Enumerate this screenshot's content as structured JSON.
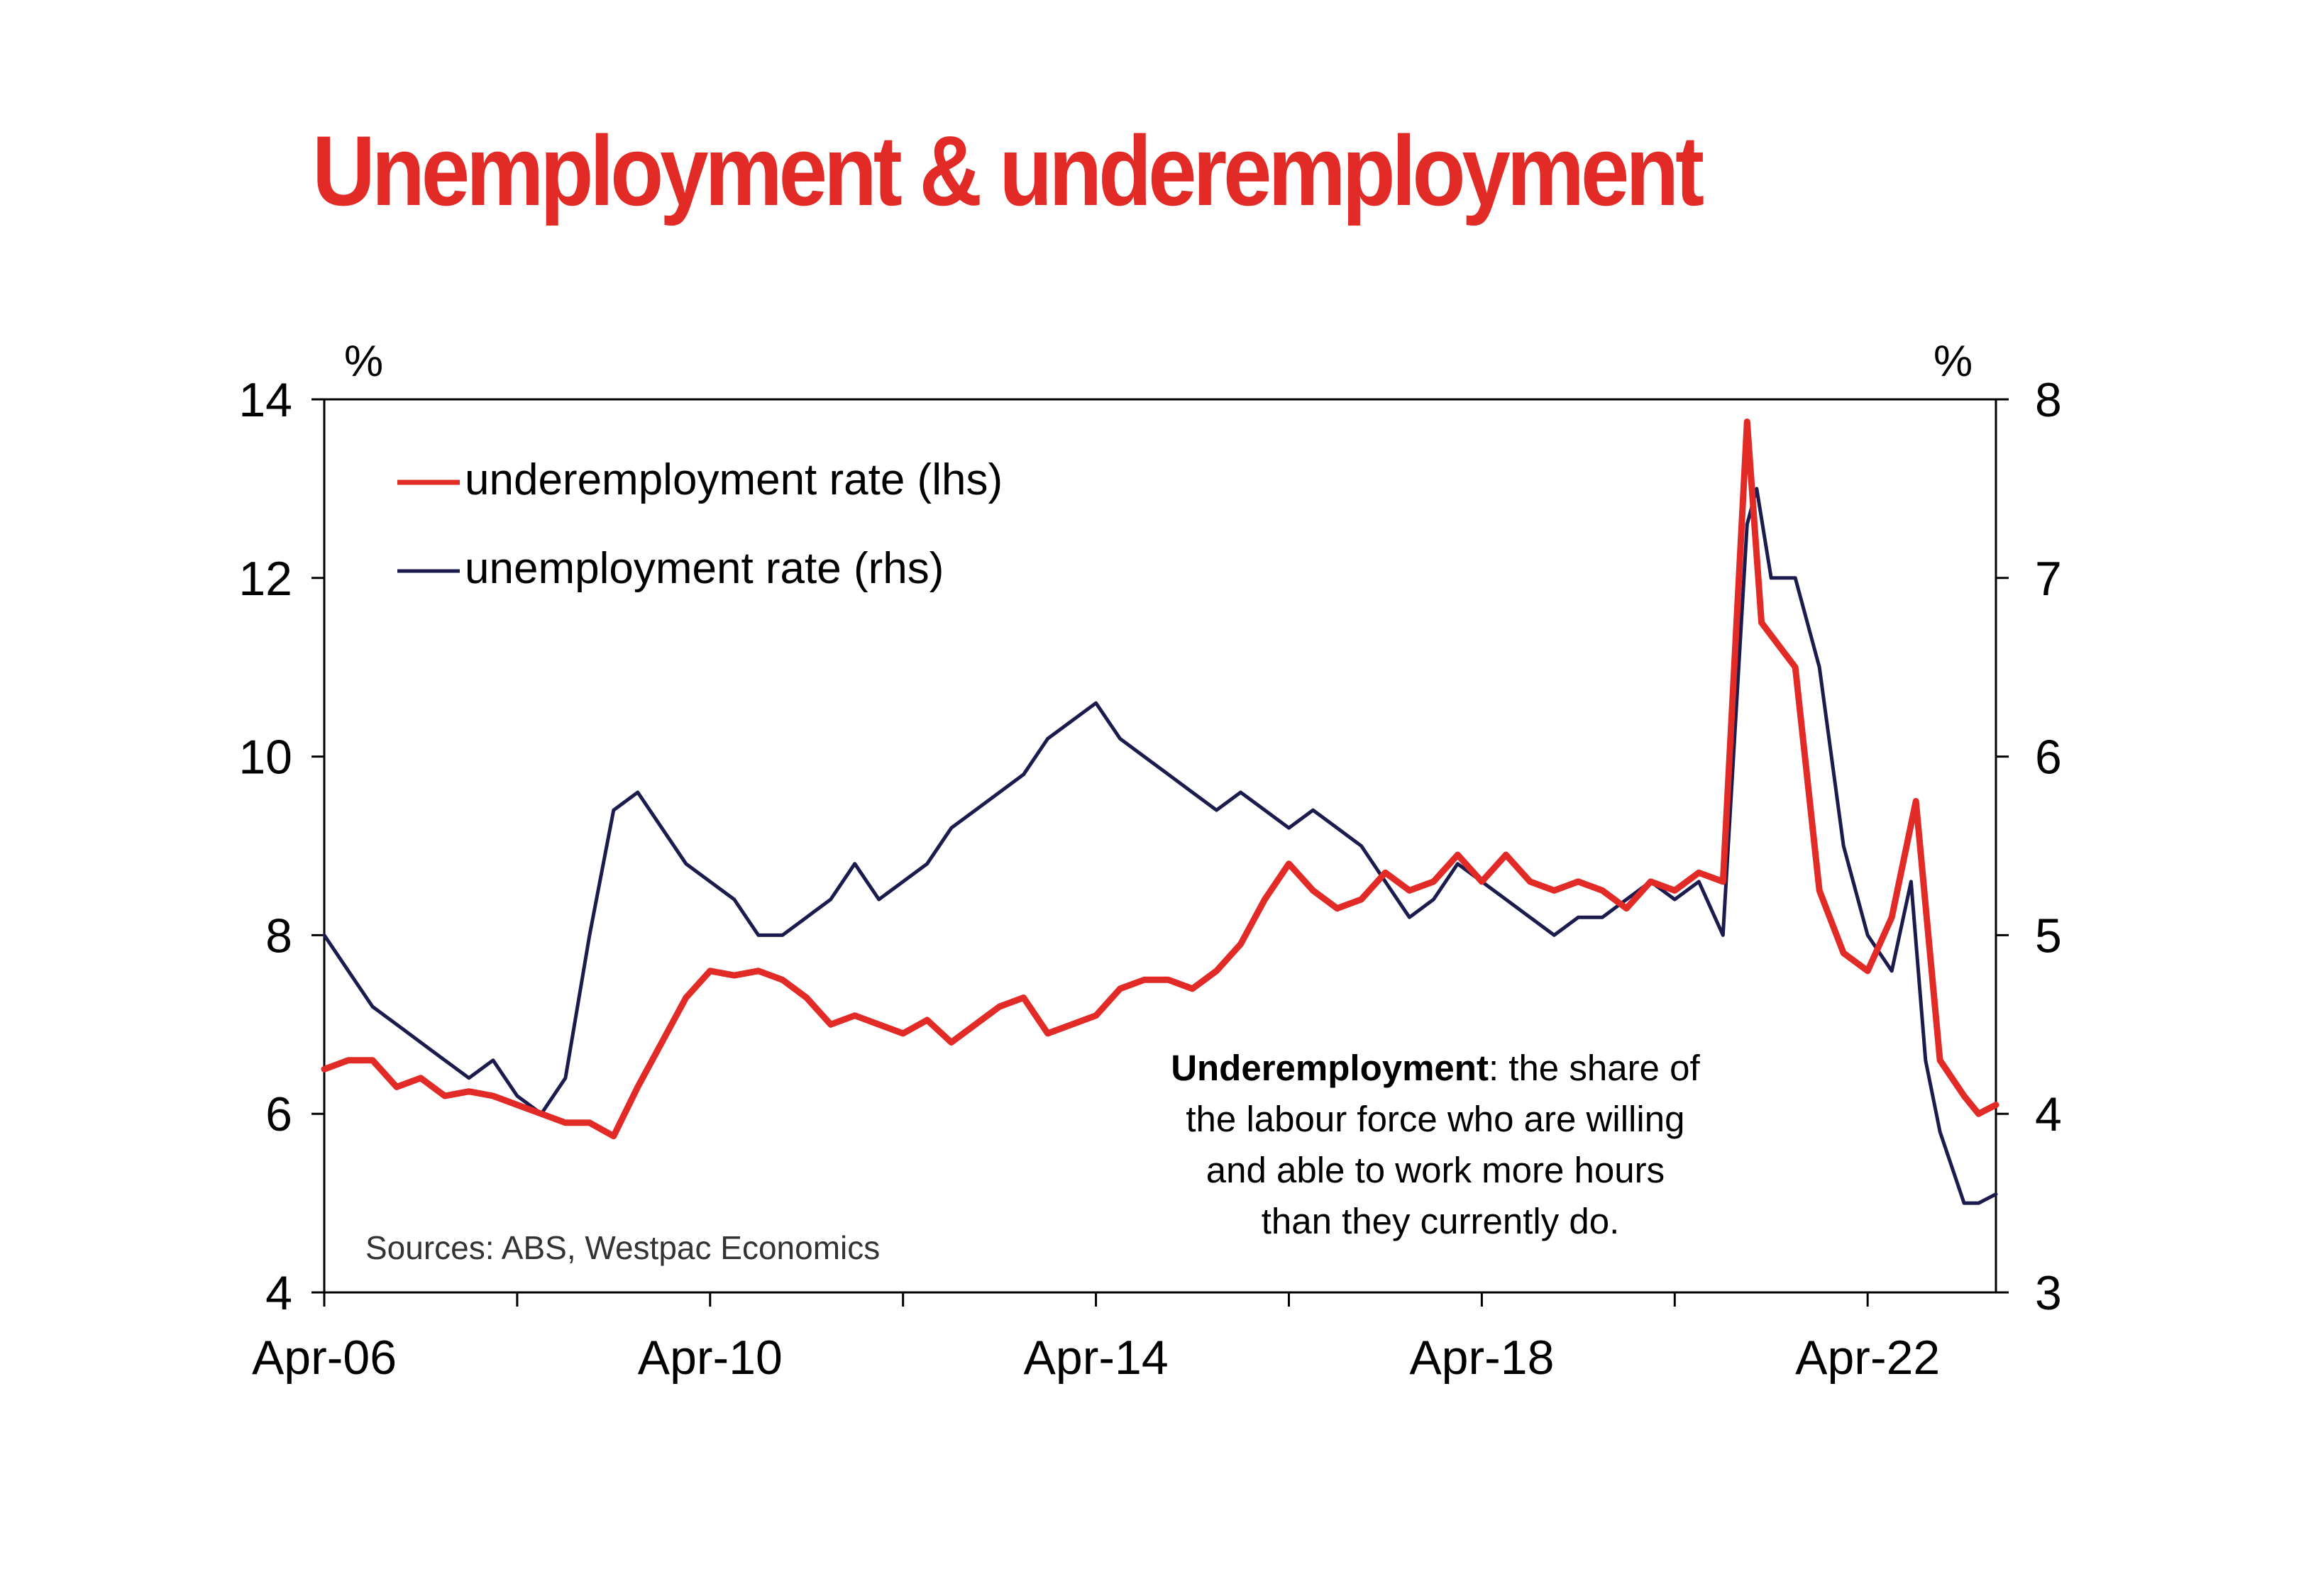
{
  "title": "Unemployment & underemployment",
  "colors": {
    "title": "#e22a26",
    "underemployment": "#e22a26",
    "unemployment": "#1b1b4d"
  },
  "chart_data": {
    "type": "line",
    "title": "Unemployment & underemployment",
    "x_tick_labels": [
      "Apr-06",
      "Apr-10",
      "Apr-14",
      "Apr-18",
      "Apr-22"
    ],
    "x_tick_positions": [
      2006.25,
      2010.25,
      2014.25,
      2018.25,
      2022.25
    ],
    "xlim": [
      2006.25,
      2023.58
    ],
    "y_left": {
      "unit": "%",
      "ylim": [
        4,
        14
      ],
      "ticks": [
        4,
        6,
        8,
        10,
        12,
        14
      ]
    },
    "y_right": {
      "unit": "%",
      "ylim": [
        3,
        8
      ],
      "ticks": [
        3,
        4,
        5,
        6,
        7,
        8
      ]
    },
    "legend_position": "top-left",
    "grid": false,
    "annotation": {
      "bold": "Underemployment",
      "lines": [
        ": the share of",
        "the labour force who are willing",
        "and able to work more hours",
        "than they currently do."
      ]
    },
    "source": "Sources: ABS, Westpac Economics",
    "series": [
      {
        "name": "underemployment rate (lhs)",
        "axis": "left",
        "color": "#e22a26",
        "points": [
          [
            2006.25,
            6.5
          ],
          [
            2006.5,
            6.6
          ],
          [
            2006.75,
            6.6
          ],
          [
            2007.0,
            6.3
          ],
          [
            2007.25,
            6.4
          ],
          [
            2007.5,
            6.2
          ],
          [
            2007.75,
            6.25
          ],
          [
            2008.0,
            6.2
          ],
          [
            2008.25,
            6.1
          ],
          [
            2008.5,
            6.0
          ],
          [
            2008.75,
            5.9
          ],
          [
            2009.0,
            5.9
          ],
          [
            2009.25,
            5.75
          ],
          [
            2009.5,
            6.3
          ],
          [
            2009.75,
            6.8
          ],
          [
            2010.0,
            7.3
          ],
          [
            2010.25,
            7.6
          ],
          [
            2010.5,
            7.55
          ],
          [
            2010.75,
            7.6
          ],
          [
            2011.0,
            7.5
          ],
          [
            2011.25,
            7.3
          ],
          [
            2011.5,
            7.0
          ],
          [
            2011.75,
            7.1
          ],
          [
            2012.0,
            7.0
          ],
          [
            2012.25,
            6.9
          ],
          [
            2012.5,
            7.05
          ],
          [
            2012.75,
            6.8
          ],
          [
            2013.0,
            7.0
          ],
          [
            2013.25,
            7.2
          ],
          [
            2013.5,
            7.3
          ],
          [
            2013.75,
            6.9
          ],
          [
            2014.0,
            7.0
          ],
          [
            2014.25,
            7.1
          ],
          [
            2014.5,
            7.4
          ],
          [
            2014.75,
            7.5
          ],
          [
            2015.0,
            7.5
          ],
          [
            2015.25,
            7.4
          ],
          [
            2015.5,
            7.6
          ],
          [
            2015.75,
            7.9
          ],
          [
            2016.0,
            8.4
          ],
          [
            2016.25,
            8.8
          ],
          [
            2016.5,
            8.5
          ],
          [
            2016.75,
            8.3
          ],
          [
            2017.0,
            8.4
          ],
          [
            2017.25,
            8.7
          ],
          [
            2017.5,
            8.5
          ],
          [
            2017.75,
            8.6
          ],
          [
            2018.0,
            8.9
          ],
          [
            2018.25,
            8.6
          ],
          [
            2018.5,
            8.9
          ],
          [
            2018.75,
            8.6
          ],
          [
            2019.0,
            8.5
          ],
          [
            2019.25,
            8.6
          ],
          [
            2019.5,
            8.5
          ],
          [
            2019.75,
            8.3
          ],
          [
            2020.0,
            8.6
          ],
          [
            2020.25,
            8.5
          ],
          [
            2020.5,
            8.7
          ],
          [
            2020.75,
            8.6
          ],
          [
            2021.0,
            13.75
          ],
          [
            2021.15,
            11.5
          ],
          [
            2021.5,
            11.0
          ],
          [
            2021.75,
            8.5
          ],
          [
            2022.0,
            7.8
          ],
          [
            2022.25,
            7.6
          ],
          [
            2022.5,
            8.2
          ],
          [
            2022.75,
            9.5
          ],
          [
            2023.0,
            6.6
          ],
          [
            2023.25,
            6.2
          ],
          [
            2023.4,
            6.0
          ],
          [
            2023.58,
            6.1
          ]
        ]
      },
      {
        "name": "unemployment rate (rhs)",
        "axis": "right",
        "color": "#1b1b4d",
        "points": [
          [
            2006.25,
            5.0
          ],
          [
            2006.5,
            4.8
          ],
          [
            2006.75,
            4.6
          ],
          [
            2007.0,
            4.5
          ],
          [
            2007.25,
            4.4
          ],
          [
            2007.5,
            4.3
          ],
          [
            2007.75,
            4.2
          ],
          [
            2008.0,
            4.3
          ],
          [
            2008.25,
            4.1
          ],
          [
            2008.5,
            4.0
          ],
          [
            2008.75,
            4.2
          ],
          [
            2009.0,
            5.0
          ],
          [
            2009.25,
            5.7
          ],
          [
            2009.5,
            5.8
          ],
          [
            2009.75,
            5.6
          ],
          [
            2010.0,
            5.4
          ],
          [
            2010.25,
            5.3
          ],
          [
            2010.5,
            5.2
          ],
          [
            2010.75,
            5.0
          ],
          [
            2011.0,
            5.0
          ],
          [
            2011.25,
            5.1
          ],
          [
            2011.5,
            5.2
          ],
          [
            2011.75,
            5.4
          ],
          [
            2012.0,
            5.2
          ],
          [
            2012.25,
            5.3
          ],
          [
            2012.5,
            5.4
          ],
          [
            2012.75,
            5.6
          ],
          [
            2013.0,
            5.7
          ],
          [
            2013.25,
            5.8
          ],
          [
            2013.5,
            5.9
          ],
          [
            2013.75,
            6.1
          ],
          [
            2014.0,
            6.2
          ],
          [
            2014.25,
            6.3
          ],
          [
            2014.5,
            6.1
          ],
          [
            2014.75,
            6.0
          ],
          [
            2015.0,
            5.9
          ],
          [
            2015.25,
            5.8
          ],
          [
            2015.5,
            5.7
          ],
          [
            2015.75,
            5.8
          ],
          [
            2016.0,
            5.7
          ],
          [
            2016.25,
            5.6
          ],
          [
            2016.5,
            5.7
          ],
          [
            2016.75,
            5.6
          ],
          [
            2017.0,
            5.5
          ],
          [
            2017.25,
            5.3
          ],
          [
            2017.5,
            5.1
          ],
          [
            2017.75,
            5.2
          ],
          [
            2018.0,
            5.4
          ],
          [
            2018.25,
            5.3
          ],
          [
            2018.5,
            5.2
          ],
          [
            2018.75,
            5.1
          ],
          [
            2019.0,
            5.0
          ],
          [
            2019.25,
            5.1
          ],
          [
            2019.5,
            5.1
          ],
          [
            2019.75,
            5.2
          ],
          [
            2020.0,
            5.3
          ],
          [
            2020.25,
            5.2
          ],
          [
            2020.5,
            5.3
          ],
          [
            2020.75,
            5.0
          ],
          [
            2021.0,
            7.3
          ],
          [
            2021.1,
            7.5
          ],
          [
            2021.25,
            7.0
          ],
          [
            2021.5,
            7.0
          ],
          [
            2021.75,
            6.5
          ],
          [
            2022.0,
            5.5
          ],
          [
            2022.25,
            5.0
          ],
          [
            2022.5,
            4.8
          ],
          [
            2022.7,
            5.3
          ],
          [
            2022.85,
            4.3
          ],
          [
            2023.0,
            3.9
          ],
          [
            2023.25,
            3.5
          ],
          [
            2023.4,
            3.5
          ],
          [
            2023.58,
            3.55
          ]
        ]
      }
    ]
  }
}
